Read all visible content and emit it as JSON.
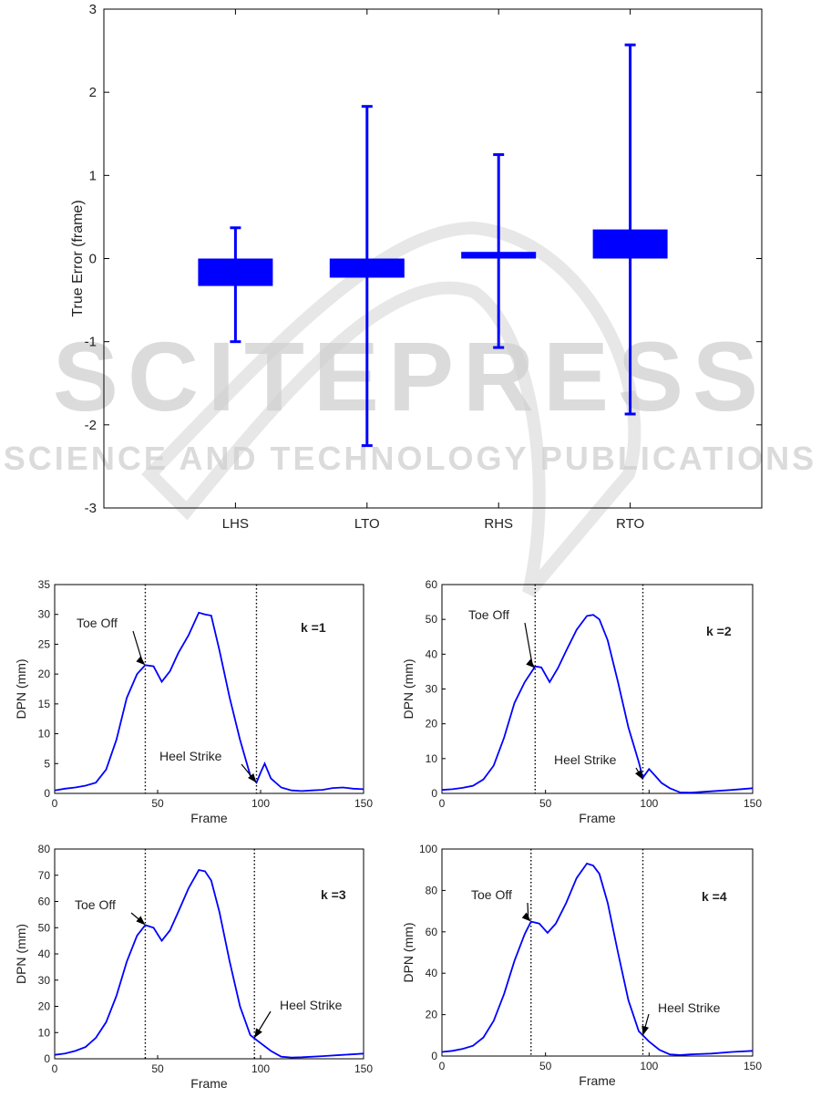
{
  "watermark": {
    "title": "SCITEPRESS",
    "subtitle": "SCIENCE AND TECHNOLOGY PUBLICATIONS",
    "color": "#c8c8c8"
  },
  "chart_data": [
    {
      "type": "bar",
      "ylabel": "True Error (frame)",
      "ylim": [
        -3,
        3
      ],
      "yticks": [
        -3,
        -2,
        -1,
        0,
        1,
        2,
        3
      ],
      "categories": [
        "LHS",
        "LTO",
        "RHS",
        "RTO"
      ],
      "mean": [
        -0.33,
        -0.23,
        0.08,
        0.35
      ],
      "min": [
        -1.0,
        -2.25,
        -1.07,
        -1.87
      ],
      "max": [
        0.37,
        1.83,
        1.25,
        2.57
      ],
      "color": "#0000ff",
      "grid": false
    },
    {
      "type": "line",
      "xlabel": "Frame",
      "ylabel": "DPN (mm)",
      "annotation": "k =1",
      "xlim": [
        0,
        150
      ],
      "ylim": [
        0,
        35
      ],
      "xticks": [
        0,
        50,
        100,
        150
      ],
      "yticks": [
        0,
        5,
        10,
        15,
        20,
        25,
        30,
        35
      ],
      "vlines": [
        44,
        98
      ],
      "toe_off": {
        "label": "Toe Off",
        "x": 44,
        "y": 21.5
      },
      "heel_strike": {
        "label": "Heel Strike",
        "x": 98,
        "y": 1.8
      },
      "x": [
        0,
        5,
        10,
        15,
        20,
        25,
        30,
        35,
        40,
        44,
        48,
        52,
        56,
        60,
        65,
        70,
        73,
        76,
        80,
        85,
        90,
        95,
        98,
        100,
        102,
        105,
        110,
        115,
        120,
        125,
        130,
        135,
        140,
        145,
        150
      ],
      "y": [
        0.5,
        0.8,
        1.0,
        1.3,
        1.8,
        4.0,
        9.0,
        16.0,
        20.0,
        21.5,
        21.3,
        18.7,
        20.5,
        23.5,
        26.5,
        30.3,
        30.0,
        29.8,
        24.0,
        16.0,
        9.0,
        3.0,
        1.8,
        3.5,
        5.0,
        2.5,
        1.0,
        0.5,
        0.4,
        0.5,
        0.6,
        0.9,
        1.0,
        0.8,
        0.7
      ],
      "color": "#0000ff"
    },
    {
      "type": "line",
      "xlabel": "Frame",
      "ylabel": "DPN (mm)",
      "annotation": "k =2",
      "xlim": [
        0,
        150
      ],
      "ylim": [
        0,
        60
      ],
      "xticks": [
        0,
        50,
        100,
        150
      ],
      "yticks": [
        0,
        10,
        20,
        30,
        40,
        50,
        60
      ],
      "vlines": [
        45,
        97
      ],
      "toe_off": {
        "label": "Toe Off",
        "x": 45,
        "y": 36
      },
      "heel_strike": {
        "label": "Heel Strike",
        "x": 97,
        "y": 4
      },
      "x": [
        0,
        5,
        10,
        15,
        20,
        25,
        30,
        35,
        40,
        45,
        48,
        52,
        56,
        60,
        65,
        70,
        73,
        76,
        80,
        85,
        90,
        95,
        97,
        100,
        103,
        106,
        110,
        115,
        120,
        130,
        140,
        150
      ],
      "y": [
        1.0,
        1.2,
        1.6,
        2.2,
        4.0,
        8.0,
        16.0,
        26.0,
        32.0,
        36.5,
        36.2,
        32.0,
        36.0,
        41.0,
        47.0,
        51.0,
        51.3,
        50.0,
        44.0,
        32.0,
        19.0,
        9.0,
        4.5,
        7.0,
        5.0,
        3.0,
        1.5,
        0.3,
        0.2,
        0.6,
        1.0,
        1.5
      ],
      "color": "#0000ff"
    },
    {
      "type": "line",
      "xlabel": "Frame",
      "ylabel": "DPN (mm)",
      "annotation": "k =3",
      "xlim": [
        0,
        150
      ],
      "ylim": [
        0,
        80
      ],
      "xticks": [
        0,
        50,
        100,
        150
      ],
      "yticks": [
        0,
        10,
        20,
        30,
        40,
        50,
        60,
        70,
        80
      ],
      "vlines": [
        44,
        97
      ],
      "toe_off": {
        "label": "Toe Off",
        "x": 44,
        "y": 51
      },
      "heel_strike": {
        "label": "Heel Strike",
        "x": 97,
        "y": 8
      },
      "x": [
        0,
        5,
        10,
        15,
        20,
        25,
        30,
        35,
        40,
        44,
        48,
        52,
        56,
        60,
        65,
        70,
        73,
        76,
        80,
        85,
        90,
        95,
        100,
        105,
        110,
        115,
        120,
        130,
        140,
        150
      ],
      "y": [
        1.5,
        2.0,
        3.0,
        4.5,
        8.0,
        14.0,
        24.0,
        37.0,
        47.0,
        51.0,
        50.0,
        45.0,
        49.0,
        56.0,
        65.0,
        72.0,
        71.5,
        68.0,
        56.0,
        37.0,
        20.0,
        9.0,
        6.0,
        3.0,
        0.8,
        0.5,
        0.6,
        1.0,
        1.5,
        2.0
      ],
      "color": "#0000ff"
    },
    {
      "type": "line",
      "xlabel": "Frame",
      "ylabel": "DPN (mm)",
      "annotation": "k =4",
      "xlim": [
        0,
        150
      ],
      "ylim": [
        0,
        100
      ],
      "xticks": [
        0,
        50,
        100,
        150
      ],
      "yticks": [
        0,
        20,
        40,
        60,
        80,
        100
      ],
      "vlines": [
        43,
        97
      ],
      "toe_off": {
        "label": "Toe Off",
        "x": 43,
        "y": 65
      },
      "heel_strike": {
        "label": "Heel Strike",
        "x": 97,
        "y": 10
      },
      "x": [
        0,
        5,
        10,
        15,
        20,
        25,
        30,
        35,
        40,
        43,
        47,
        51,
        55,
        60,
        65,
        70,
        73,
        76,
        80,
        85,
        90,
        95,
        100,
        105,
        110,
        115,
        120,
        130,
        140,
        150
      ],
      "y": [
        2.0,
        2.5,
        3.5,
        5.0,
        9.0,
        17.0,
        30.0,
        46.0,
        59.0,
        65.0,
        64.0,
        59.5,
        64.0,
        74.0,
        86.0,
        93.0,
        92.0,
        88.0,
        74.0,
        50.0,
        27.0,
        12.0,
        7.0,
        3.0,
        0.8,
        0.5,
        0.8,
        1.2,
        2.0,
        2.5
      ],
      "color": "#0000ff"
    }
  ]
}
